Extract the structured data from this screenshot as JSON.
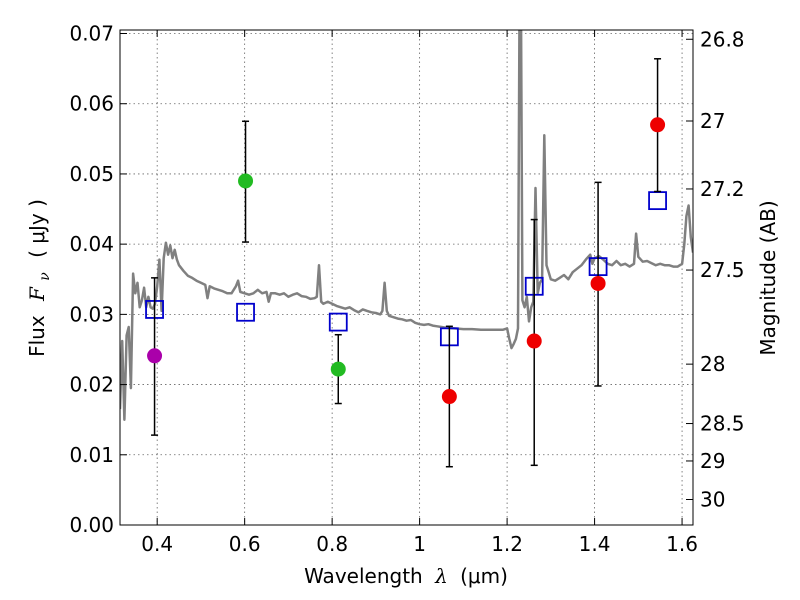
{
  "chart_data": {
    "type": "scatter",
    "xlabel_text": "Wavelength",
    "xlabel_symbol": "λ",
    "xlabel_unit": "(μm)",
    "ylabel_text": "Flux",
    "ylabel_symbol": "F",
    "ylabel_sub": "ν",
    "ylabel_unit": "( μJy )",
    "y2label": "Magnitude (AB)",
    "xlim": [
      0.315,
      1.625
    ],
    "ylim": [
      0.0,
      0.0705
    ],
    "grid": true,
    "x_ticks": [
      "0.4",
      "0.6",
      "0.8",
      "1",
      "1.2",
      "1.4",
      "1.6"
    ],
    "y_ticks": [
      "0.00",
      "0.01",
      "0.02",
      "0.03",
      "0.04",
      "0.05",
      "0.06",
      "0.07"
    ],
    "y2_ticks": [
      {
        "label": "26.8",
        "flux": 0.06918
      },
      {
        "label": "27",
        "flux": 0.05754
      },
      {
        "label": "27.2",
        "flux": 0.04786
      },
      {
        "label": "27.5",
        "flux": 0.03631
      },
      {
        "label": "28",
        "flux": 0.02291
      },
      {
        "label": "28.5",
        "flux": 0.01445
      },
      {
        "label": "29",
        "flux": 0.00912
      },
      {
        "label": "30",
        "flux": 0.00363
      }
    ],
    "colors": {
      "spectrum": "#808080",
      "model_marker": "#0000cc",
      "obs_uv": "#aa00aa",
      "obs_optical": "#22bb22",
      "obs_nir": "#ee0000",
      "errorbar": "#000000"
    },
    "observed": [
      {
        "x": 0.394,
        "y": 0.0241,
        "err_low": 0.0128,
        "err_high": 0.0352,
        "color": "obs_uv"
      },
      {
        "x": 0.602,
        "y": 0.049,
        "err_low": 0.0403,
        "err_high": 0.0575,
        "color": "obs_optical"
      },
      {
        "x": 0.814,
        "y": 0.0222,
        "err_low": 0.0173,
        "err_high": 0.0271,
        "color": "obs_optical"
      },
      {
        "x": 1.068,
        "y": 0.0183,
        "err_low": 0.0083,
        "err_high": 0.0283,
        "color": "obs_nir"
      },
      {
        "x": 1.262,
        "y": 0.0262,
        "err_low": 0.0085,
        "err_high": 0.0435,
        "color": "obs_nir"
      },
      {
        "x": 1.408,
        "y": 0.0344,
        "err_low": 0.0198,
        "err_high": 0.0488,
        "color": "obs_nir"
      },
      {
        "x": 1.544,
        "y": 0.057,
        "err_low": 0.0475,
        "err_high": 0.0664,
        "color": "obs_nir"
      }
    ],
    "model_points": [
      {
        "x": 0.394,
        "y": 0.0307
      },
      {
        "x": 0.602,
        "y": 0.0303
      },
      {
        "x": 0.814,
        "y": 0.0289
      },
      {
        "x": 1.068,
        "y": 0.0268
      },
      {
        "x": 1.262,
        "y": 0.034
      },
      {
        "x": 1.408,
        "y": 0.0368
      },
      {
        "x": 1.544,
        "y": 0.0462
      }
    ],
    "spectrum": [
      [
        0.315,
        0.0165
      ],
      [
        0.32,
        0.0262
      ],
      [
        0.325,
        0.015
      ],
      [
        0.33,
        0.027
      ],
      [
        0.335,
        0.0282
      ],
      [
        0.34,
        0.0195
      ],
      [
        0.345,
        0.0358
      ],
      [
        0.35,
        0.033
      ],
      [
        0.355,
        0.0345
      ],
      [
        0.36,
        0.031
      ],
      [
        0.365,
        0.032
      ],
      [
        0.37,
        0.0338
      ],
      [
        0.375,
        0.031
      ],
      [
        0.38,
        0.0325
      ],
      [
        0.385,
        0.031
      ],
      [
        0.39,
        0.0308
      ],
      [
        0.395,
        0.0315
      ],
      [
        0.4,
        0.034
      ],
      [
        0.405,
        0.0378
      ],
      [
        0.41,
        0.0305
      ],
      [
        0.415,
        0.038
      ],
      [
        0.42,
        0.0402
      ],
      [
        0.425,
        0.0385
      ],
      [
        0.43,
        0.0398
      ],
      [
        0.435,
        0.038
      ],
      [
        0.44,
        0.0392
      ],
      [
        0.445,
        0.0378
      ],
      [
        0.45,
        0.037
      ],
      [
        0.46,
        0.0362
      ],
      [
        0.47,
        0.0355
      ],
      [
        0.48,
        0.0352
      ],
      [
        0.49,
        0.0348
      ],
      [
        0.5,
        0.0345
      ],
      [
        0.51,
        0.0342
      ],
      [
        0.515,
        0.0323
      ],
      [
        0.52,
        0.034
      ],
      [
        0.53,
        0.0337
      ],
      [
        0.54,
        0.0335
      ],
      [
        0.55,
        0.0333
      ],
      [
        0.56,
        0.033
      ],
      [
        0.57,
        0.033
      ],
      [
        0.58,
        0.034
      ],
      [
        0.585,
        0.0348
      ],
      [
        0.59,
        0.0332
      ],
      [
        0.6,
        0.033
      ],
      [
        0.61,
        0.0328
      ],
      [
        0.62,
        0.033
      ],
      [
        0.63,
        0.0335
      ],
      [
        0.64,
        0.033
      ],
      [
        0.65,
        0.0332
      ],
      [
        0.655,
        0.0318
      ],
      [
        0.66,
        0.033
      ],
      [
        0.67,
        0.033
      ],
      [
        0.68,
        0.0328
      ],
      [
        0.69,
        0.033
      ],
      [
        0.7,
        0.0325
      ],
      [
        0.71,
        0.0328
      ],
      [
        0.72,
        0.033
      ],
      [
        0.73,
        0.0326
      ],
      [
        0.74,
        0.0325
      ],
      [
        0.75,
        0.0322
      ],
      [
        0.76,
        0.0323
      ],
      [
        0.765,
        0.0325
      ],
      [
        0.77,
        0.037
      ],
      [
        0.775,
        0.0318
      ],
      [
        0.78,
        0.0315
      ],
      [
        0.79,
        0.0318
      ],
      [
        0.8,
        0.0315
      ],
      [
        0.81,
        0.0312
      ],
      [
        0.82,
        0.031
      ],
      [
        0.83,
        0.0308
      ],
      [
        0.84,
        0.031
      ],
      [
        0.85,
        0.0306
      ],
      [
        0.86,
        0.0303
      ],
      [
        0.87,
        0.0307
      ],
      [
        0.88,
        0.0305
      ],
      [
        0.89,
        0.0303
      ],
      [
        0.9,
        0.0302
      ],
      [
        0.91,
        0.03
      ],
      [
        0.915,
        0.0305
      ],
      [
        0.92,
        0.0345
      ],
      [
        0.925,
        0.0305
      ],
      [
        0.93,
        0.0298
      ],
      [
        0.94,
        0.0296
      ],
      [
        0.95,
        0.0294
      ],
      [
        0.96,
        0.0293
      ],
      [
        0.97,
        0.0291
      ],
      [
        0.98,
        0.0292
      ],
      [
        0.99,
        0.0288
      ],
      [
        1.0,
        0.0286
      ],
      [
        1.01,
        0.0285
      ],
      [
        1.02,
        0.0286
      ],
      [
        1.03,
        0.0284
      ],
      [
        1.04,
        0.0283
      ],
      [
        1.05,
        0.0282
      ],
      [
        1.06,
        0.0281
      ],
      [
        1.08,
        0.028
      ],
      [
        1.1,
        0.0279
      ],
      [
        1.12,
        0.0279
      ],
      [
        1.14,
        0.0278
      ],
      [
        1.16,
        0.0278
      ],
      [
        1.18,
        0.0278
      ],
      [
        1.19,
        0.0278
      ],
      [
        1.2,
        0.028
      ],
      [
        1.205,
        0.0265
      ],
      [
        1.21,
        0.0252
      ],
      [
        1.215,
        0.0258
      ],
      [
        1.22,
        0.0265
      ],
      [
        1.225,
        0.028
      ],
      [
        1.228,
        0.0706
      ],
      [
        1.232,
        0.0706
      ],
      [
        1.235,
        0.032
      ],
      [
        1.24,
        0.031
      ],
      [
        1.245,
        0.0325
      ],
      [
        1.25,
        0.029
      ],
      [
        1.255,
        0.031
      ],
      [
        1.26,
        0.0318
      ],
      [
        1.265,
        0.048
      ],
      [
        1.27,
        0.033
      ],
      [
        1.275,
        0.0345
      ],
      [
        1.28,
        0.035
      ],
      [
        1.285,
        0.0555
      ],
      [
        1.29,
        0.037
      ],
      [
        1.295,
        0.036
      ],
      [
        1.3,
        0.035
      ],
      [
        1.31,
        0.0348
      ],
      [
        1.32,
        0.0352
      ],
      [
        1.33,
        0.0356
      ],
      [
        1.34,
        0.035
      ],
      [
        1.35,
        0.036
      ],
      [
        1.36,
        0.0365
      ],
      [
        1.37,
        0.037
      ],
      [
        1.38,
        0.0378
      ],
      [
        1.39,
        0.0385
      ],
      [
        1.395,
        0.0372
      ],
      [
        1.4,
        0.038
      ],
      [
        1.41,
        0.0383
      ],
      [
        1.42,
        0.0378
      ],
      [
        1.43,
        0.0372
      ],
      [
        1.44,
        0.037
      ],
      [
        1.45,
        0.0376
      ],
      [
        1.46,
        0.037
      ],
      [
        1.47,
        0.0372
      ],
      [
        1.48,
        0.0368
      ],
      [
        1.49,
        0.0372
      ],
      [
        1.495,
        0.0415
      ],
      [
        1.5,
        0.0382
      ],
      [
        1.51,
        0.0375
      ],
      [
        1.52,
        0.0376
      ],
      [
        1.53,
        0.0373
      ],
      [
        1.54,
        0.037
      ],
      [
        1.55,
        0.0372
      ],
      [
        1.56,
        0.037
      ],
      [
        1.57,
        0.037
      ],
      [
        1.58,
        0.0368
      ],
      [
        1.59,
        0.0368
      ],
      [
        1.6,
        0.0372
      ],
      [
        1.605,
        0.04
      ],
      [
        1.61,
        0.044
      ],
      [
        1.615,
        0.0455
      ],
      [
        1.62,
        0.041
      ],
      [
        1.625,
        0.0388
      ]
    ]
  }
}
